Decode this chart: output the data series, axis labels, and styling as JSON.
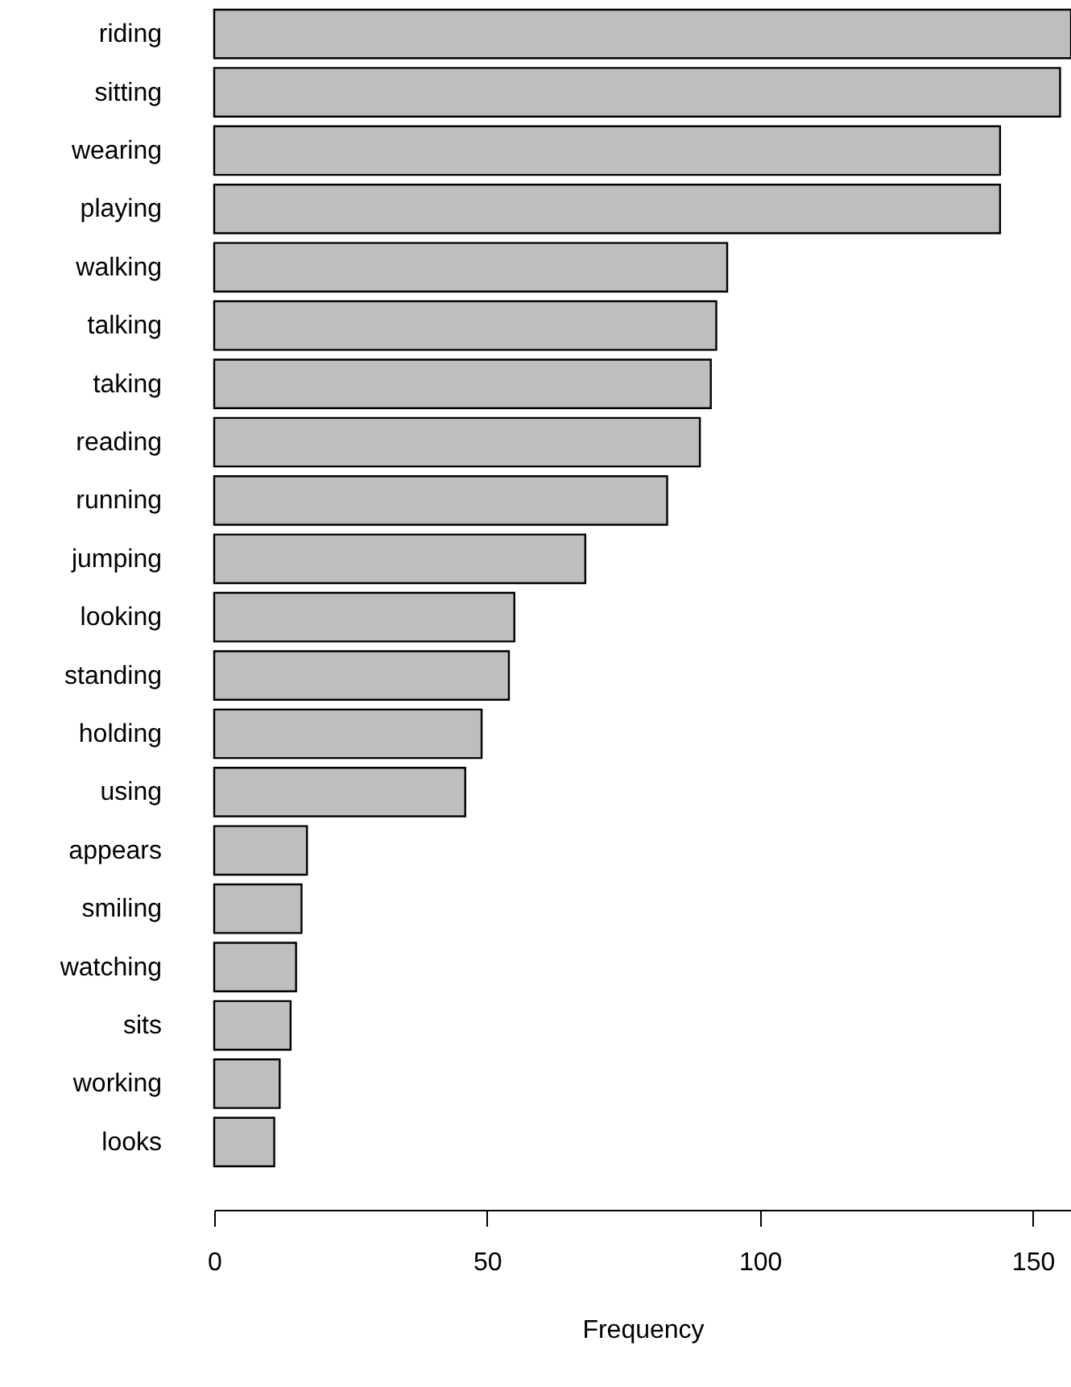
{
  "chart_data": {
    "type": "bar",
    "orientation": "horizontal",
    "categories": [
      "riding",
      "sitting",
      "wearing",
      "playing",
      "walking",
      "talking",
      "taking",
      "reading",
      "running",
      "jumping",
      "looking",
      "standing",
      "holding",
      "using",
      "appears",
      "smiling",
      "watching",
      "sits",
      "working",
      "looks"
    ],
    "values": [
      157,
      155,
      144,
      144,
      94,
      92,
      91,
      89,
      83,
      68,
      55,
      54,
      49,
      46,
      17,
      16,
      15,
      14,
      12,
      11
    ],
    "color": "#bebebe",
    "xlabel": "Frequency",
    "xlim": [
      0,
      157
    ],
    "xticks": [
      0,
      50,
      100,
      150
    ]
  }
}
